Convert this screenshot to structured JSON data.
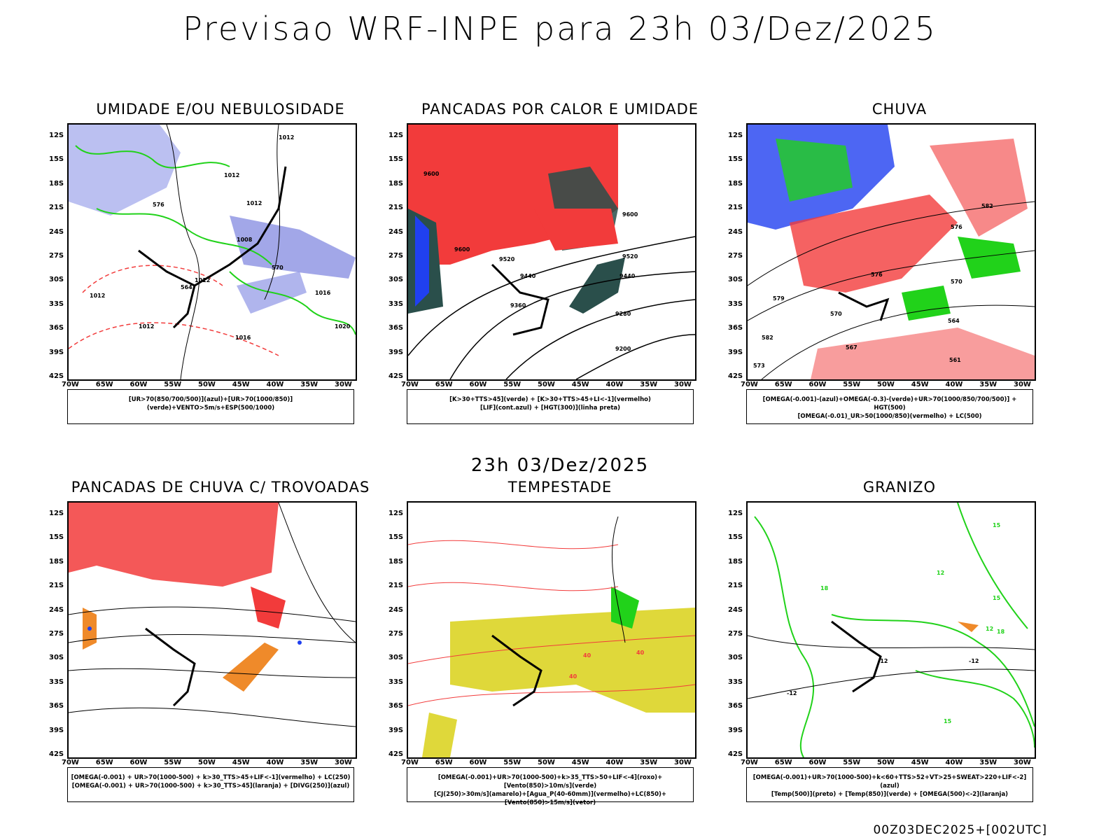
{
  "header": {
    "title": "Previsao WRF-INPE  para 23h 03/Dez/2025"
  },
  "middle": {
    "title": "23h 03/Dez/2025"
  },
  "footer": {
    "stamp": "00Z03DEC2025+[002UTC]"
  },
  "axes": {
    "lat_labels": [
      "12S",
      "15S",
      "18S",
      "21S",
      "24S",
      "27S",
      "30S",
      "33S",
      "36S",
      "39S",
      "42S"
    ],
    "lon_labels": [
      "70W",
      "65W",
      "60W",
      "55W",
      "50W",
      "45W",
      "40W",
      "35W",
      "30W"
    ]
  },
  "panels": [
    {
      "id": "umidade",
      "title": "UMIDADE E/OU NEBULOSIDADE",
      "legend": [
        "[UR>70(850/700/500)](azul)+[UR>70(1000/850)](verde)+VENTO>5m/s+ESP(500/1000)"
      ],
      "contour_labels": [
        "1012",
        "1012",
        "1012",
        "1008",
        "1012",
        "1016",
        "1020",
        "1012",
        "564",
        "570",
        "576",
        "1016",
        "1012"
      ]
    },
    {
      "id": "pancadas-calor",
      "title": "PANCADAS POR CALOR E UMIDADE",
      "legend": [
        "[K>30+TTS>45](verde) + [K>30+TTS>45+LI<-1](vermelho)",
        "[LIF](cont.azul) + [HGT(300)](linha preta)"
      ],
      "contour_labels": [
        "9600",
        "9600",
        "9520",
        "9440",
        "9360",
        "9280",
        "9200",
        "9440",
        "9520",
        "9600"
      ]
    },
    {
      "id": "chuva",
      "title": "CHUVA",
      "legend": [
        "[OMEGA(-0.001)-(azul)+OMEGA(-0.3)-(verde)+UR>70(1000/850/700/500)] + HGT(500)",
        "[OMEGA(-0.01)_UR>50(1000/850)(vermelho) + LC(500)"
      ],
      "contour_labels": [
        "582",
        "576",
        "570",
        "564",
        "567",
        "561",
        "573",
        "579",
        "582",
        "576",
        "570"
      ]
    },
    {
      "id": "pancadas-trovoadas",
      "title": "PANCADAS DE CHUVA C/ TROVOADAS",
      "legend": [
        "[OMEGA(-0.001) + UR>70(1000-500) + k>30_TTS>45+LIF<-1](vermelho) + LC(250)",
        "[OMEGA(-0.001) + UR>70(1000-500) + k>30_TTS>45](laranja) + [DIVG(250)](azul)"
      ],
      "contour_labels": []
    },
    {
      "id": "tempestade",
      "title": "TEMPESTADE",
      "legend": [
        "[OMEGA(-0.001)+UR>70(1000-500)+k>35_TTS>50+LIF<-4](roxo)+[Vento(850)>10m/s](verde)",
        "[CJ(250)>30m/s](amarelo)+[Agua_P(40-60mm)](vermelho)+LC(850)+[Vento(850)>15m/s](vetor)"
      ],
      "contour_labels": [
        "40",
        "40",
        "40"
      ]
    },
    {
      "id": "granizo",
      "title": "GRANIZO",
      "legend": [
        "[OMEGA(-0.001)+UR>70(1000-500)+k<60+TTS>52+VT>25+SWEAT>220+LIF<-2](azul)",
        "[Temp(500)](preto) + [Temp(850)](verde) + [OMEGA(500)<-2](laranja)"
      ],
      "contour_labels": [
        "-12",
        "-12",
        "-12",
        "15",
        "15",
        "12",
        "18",
        "15",
        "12",
        "18"
      ]
    }
  ],
  "colors": {
    "red": "#f23b3b",
    "green": "#21d21a",
    "blue": "#2040f0",
    "lightblue": "#aab0ee",
    "darkteal": "#2a4f4b",
    "yellow": "#dfd83a",
    "orange": "#ef8a2a"
  }
}
